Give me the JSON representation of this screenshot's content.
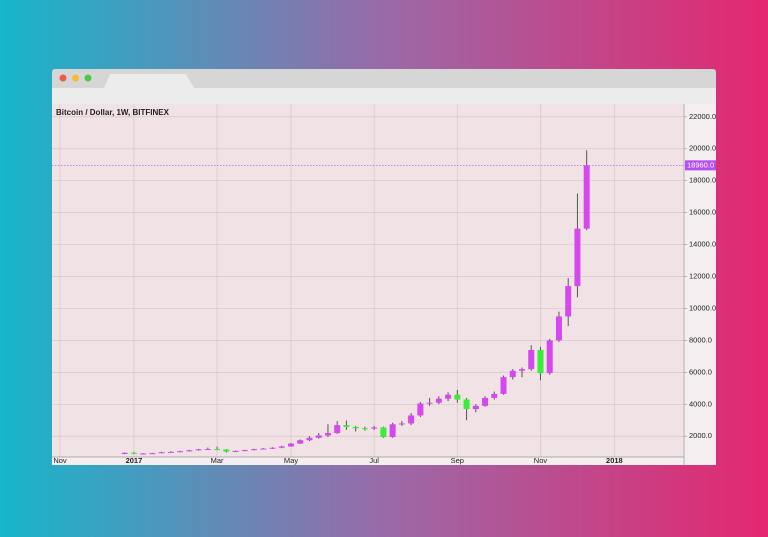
{
  "chart_data": {
    "type": "candlestick",
    "title": "Bitcoin / Dollar, 1W, BITFINEX",
    "categories": [
      "Nov",
      null,
      null,
      null,
      null,
      null,
      null,
      null,
      "2017",
      null,
      null,
      null,
      null,
      null,
      null,
      null,
      null,
      "Mar",
      null,
      null,
      null,
      null,
      null,
      null,
      null,
      "May",
      null,
      null,
      null,
      null,
      null,
      null,
      null,
      null,
      "Jul",
      null,
      null,
      null,
      null,
      null,
      null,
      null,
      null,
      "Sep",
      null,
      null,
      null,
      null,
      null,
      null,
      null,
      null,
      "Nov",
      null,
      null,
      null,
      null,
      null,
      null,
      null,
      "2018",
      null,
      null,
      null,
      null,
      null,
      null,
      null
    ],
    "series": [
      {
        "open": [
          null,
          null,
          null,
          null,
          null,
          null,
          null,
          890,
          960,
          910,
          920,
          940,
          1000,
          1020,
          1060,
          1120,
          1180,
          1200,
          1170,
          1040,
          1080,
          1130,
          1190,
          1230,
          1280,
          1360,
          1540,
          1750,
          1900,
          2050,
          2200,
          2700,
          2580,
          2500,
          2480,
          2550,
          1950,
          2750,
          2800,
          3300,
          4050,
          4100,
          4350,
          4600,
          4300,
          3700,
          3900,
          4400,
          4650,
          5700,
          6100,
          6200,
          7400,
          5950,
          8000,
          9500,
          11400,
          15000,
          null,
          null,
          null,
          null,
          null,
          null,
          null,
          null,
          null,
          null
        ],
        "high": [
          null,
          null,
          null,
          null,
          null,
          null,
          null,
          990,
          1020,
          950,
          960,
          1030,
          1060,
          1090,
          1150,
          1210,
          1290,
          1350,
          1200,
          1110,
          1150,
          1220,
          1260,
          1310,
          1400,
          1580,
          1800,
          2000,
          2200,
          2750,
          2950,
          2980,
          2650,
          2600,
          2650,
          2600,
          2850,
          2950,
          3450,
          4150,
          4400,
          4500,
          4750,
          4900,
          4400,
          4000,
          4500,
          4800,
          5800,
          6200,
          6300,
          7700,
          7600,
          8100,
          9800,
          11900,
          17200,
          19900,
          null,
          null,
          null,
          null,
          null,
          null,
          null,
          null,
          null,
          null
        ],
        "low": [
          null,
          null,
          null,
          null,
          null,
          null,
          null,
          870,
          880,
          890,
          900,
          930,
          980,
          1000,
          1040,
          1100,
          1150,
          1130,
          980,
          1010,
          1060,
          1110,
          1170,
          1200,
          1250,
          1340,
          1520,
          1700,
          1850,
          1950,
          2150,
          2400,
          2300,
          2350,
          2400,
          1900,
          1900,
          2650,
          2700,
          3200,
          3900,
          4000,
          4200,
          4100,
          3000,
          3500,
          3850,
          4300,
          4600,
          5550,
          5700,
          6100,
          5500,
          5850,
          7900,
          8900,
          10700,
          14900,
          null,
          null,
          null,
          null,
          null,
          null,
          null,
          null,
          null,
          null
        ],
        "close": [
          null,
          null,
          null,
          null,
          null,
          null,
          null,
          960,
          910,
          920,
          940,
          1000,
          1020,
          1060,
          1120,
          1180,
          1200,
          1170,
          1040,
          1080,
          1130,
          1190,
          1230,
          1280,
          1360,
          1540,
          1750,
          1900,
          2050,
          2200,
          2700,
          2580,
          2500,
          2480,
          2550,
          1950,
          2750,
          2800,
          3300,
          4050,
          4100,
          4350,
          4600,
          4300,
          3700,
          3900,
          4400,
          4650,
          5700,
          6100,
          6200,
          7400,
          5950,
          8000,
          9500,
          11400,
          15000,
          18960,
          null,
          null,
          null,
          null,
          null,
          null,
          null,
          null,
          null,
          null
        ],
        "up_color": "#d548ee",
        "down_color": "#39ee39"
      }
    ],
    "ylim": [
      700,
      22800
    ],
    "yticks": [
      {
        "value": 2000,
        "label": "2000.0"
      },
      {
        "value": 4000,
        "label": "4000.0"
      },
      {
        "value": 6000,
        "label": "6000.0"
      },
      {
        "value": 8000,
        "label": "8000.0"
      },
      {
        "value": 10000,
        "label": "10000.0"
      },
      {
        "value": 12000,
        "label": "12000.0"
      },
      {
        "value": 14000,
        "label": "14000.0"
      },
      {
        "value": 16000,
        "label": "16000.0"
      },
      {
        "value": 18000,
        "label": "18000.0"
      },
      {
        "value": 20000,
        "label": "20000.0"
      },
      {
        "value": 22000,
        "label": "22000.0"
      }
    ],
    "price_line": {
      "value": 18960,
      "label": "18960.0",
      "color": "#b44ef0"
    },
    "grid": true
  }
}
